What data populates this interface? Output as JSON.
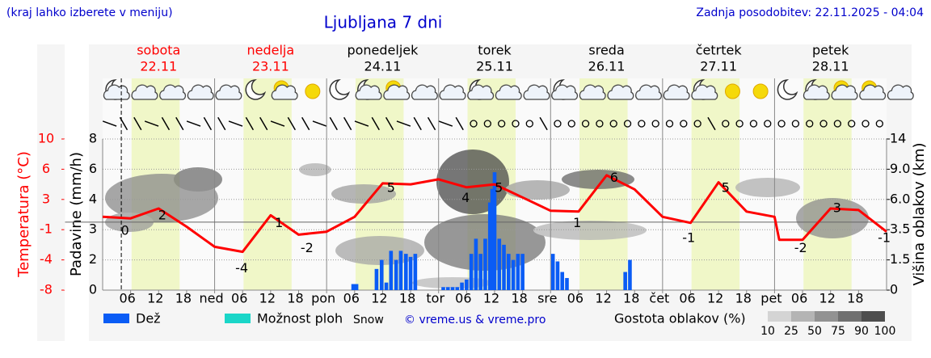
{
  "header": {
    "hint": "(kraj lahko izberete v meniju)",
    "title": "Ljubljana 7 dni",
    "updated": "Zadnja posodobitev: 22.11.2025 - 04:04"
  },
  "chart_data": {
    "type": "meteogram",
    "xlim": [
      0,
      168
    ],
    "days": [
      {
        "name": "sobota",
        "date": "22.11",
        "color": "#ff0000"
      },
      {
        "name": "nedelja",
        "date": "23.11",
        "color": "#ff0000"
      },
      {
        "name": "ponedeljek",
        "date": "24.11",
        "color": "#000000"
      },
      {
        "name": "torek",
        "date": "25.11",
        "color": "#000000"
      },
      {
        "name": "sreda",
        "date": "26.11",
        "color": "#000000"
      },
      {
        "name": "četrtek",
        "date": "27.11",
        "color": "#000000"
      },
      {
        "name": "petek",
        "date": "28.11",
        "color": "#000000"
      }
    ],
    "xticks": [
      {
        "value": 6,
        "label": "06"
      },
      {
        "value": 12,
        "label": "12"
      },
      {
        "value": 18,
        "label": "18"
      },
      {
        "value": 24,
        "label": "ned"
      },
      {
        "value": 30,
        "label": "06"
      },
      {
        "value": 36,
        "label": "12"
      },
      {
        "value": 42,
        "label": "18"
      },
      {
        "value": 48,
        "label": "pon"
      },
      {
        "value": 54,
        "label": "06"
      },
      {
        "value": 60,
        "label": "12"
      },
      {
        "value": 66,
        "label": "18"
      },
      {
        "value": 72,
        "label": "tor"
      },
      {
        "value": 78,
        "label": "06"
      },
      {
        "value": 84,
        "label": "12"
      },
      {
        "value": 90,
        "label": "18"
      },
      {
        "value": 96,
        "label": "sre"
      },
      {
        "value": 102,
        "label": "06"
      },
      {
        "value": 108,
        "label": "12"
      },
      {
        "value": 114,
        "label": "18"
      },
      {
        "value": 120,
        "label": "čet"
      },
      {
        "value": 126,
        "label": "06"
      },
      {
        "value": 132,
        "label": "12"
      },
      {
        "value": 138,
        "label": "18"
      },
      {
        "value": 144,
        "label": "pet"
      },
      {
        "value": 150,
        "label": "06"
      },
      {
        "value": 156,
        "label": "12"
      },
      {
        "value": 162,
        "label": "18"
      }
    ],
    "now": 4,
    "y_label": "Padavine (mm/h)",
    "ylim": [
      0,
      8
    ],
    "yticks": [
      0,
      2,
      3,
      4,
      6,
      8
    ],
    "y2_label": "Temperatura (°C)",
    "y2lim": [
      -8,
      10
    ],
    "y2ticks": [
      -8,
      -4,
      -1,
      3,
      6,
      10
    ],
    "y3_label": "Višina oblakov (km)",
    "y3lim": [
      0,
      14
    ],
    "y3ticks": [
      0,
      1.5,
      3.5,
      {
        "value": 6,
        "label": "6.0"
      },
      {
        "value": 9,
        "label": "9.0"
      },
      14
    ],
    "temperature": {
      "color": "#ff0000",
      "x": [
        0,
        6,
        12,
        18,
        24,
        30,
        36,
        42,
        48,
        54,
        60,
        66,
        72,
        78,
        84,
        90,
        96,
        102,
        108,
        114,
        120,
        126,
        132,
        138,
        144,
        145,
        150,
        156,
        162,
        168
      ],
      "values": [
        0.7,
        0.5,
        1.8,
        -0.6,
        -2.7,
        -3.2,
        0.9,
        -1.5,
        -1.2,
        0.7,
        4.6,
        4.5,
        5.0,
        4.2,
        4.5,
        3.2,
        1.5,
        1.4,
        5.4,
        4.0,
        0.7,
        -0.1,
        4.7,
        1.4,
        0.7,
        -2.0,
        -2.0,
        1.8,
        1.6,
        -1.2
      ],
      "labels": {
        "x": [
          4.8,
          12.8,
          29.8,
          37.8,
          43.8,
          61.8,
          77.8,
          84.9,
          101.7,
          109.6,
          125.6,
          133.5,
          149.6,
          157.4,
          167.5
        ],
        "values": [
          0,
          2,
          -4,
          1,
          -2,
          5,
          4,
          5,
          1,
          6,
          -1,
          5,
          -2,
          3,
          -1
        ]
      }
    },
    "series": [
      {
        "name": "Dež",
        "color": "#0a5cf5",
        "x": [
          53.7,
          54.4,
          58.7,
          59.8,
          60.8,
          61.8,
          62.9,
          63.9,
          65,
          66,
          67,
          73,
          74,
          75,
          76,
          77,
          78,
          79,
          80,
          81,
          82,
          83,
          83.5,
          84,
          85,
          86,
          87,
          88,
          89,
          90,
          96.5,
          97.5,
          98.5,
          99.5,
          112,
          113
        ],
        "values": [
          0.4,
          0.4,
          1.4,
          2.0,
          0.5,
          2.3,
          2.0,
          2.3,
          2.2,
          2.1,
          2.2,
          0.2,
          0.2,
          0.2,
          0.2,
          0.5,
          0.7,
          2.2,
          2.7,
          2.2,
          2.7,
          3.9,
          4.7,
          5.8,
          2.7,
          2.5,
          2.2,
          2.0,
          2.2,
          2.2,
          2.2,
          1.9,
          1.2,
          0.8,
          1.2,
          2.0
        ]
      },
      {
        "name": "Možnost ploh",
        "color": "#1ad6c8",
        "x": [],
        "values": []
      }
    ],
    "snow_label": "Snow",
    "credit": "© vreme.us & vreme.pro",
    "cloud_legend": {
      "title": "Gostota oblakov (%)",
      "ticks": [
        10,
        25,
        50,
        75,
        90,
        100
      ],
      "colors": [
        "#d4d4d4",
        "#b4b4b4",
        "#929292",
        "#707070",
        "#4e4e4e"
      ]
    }
  }
}
